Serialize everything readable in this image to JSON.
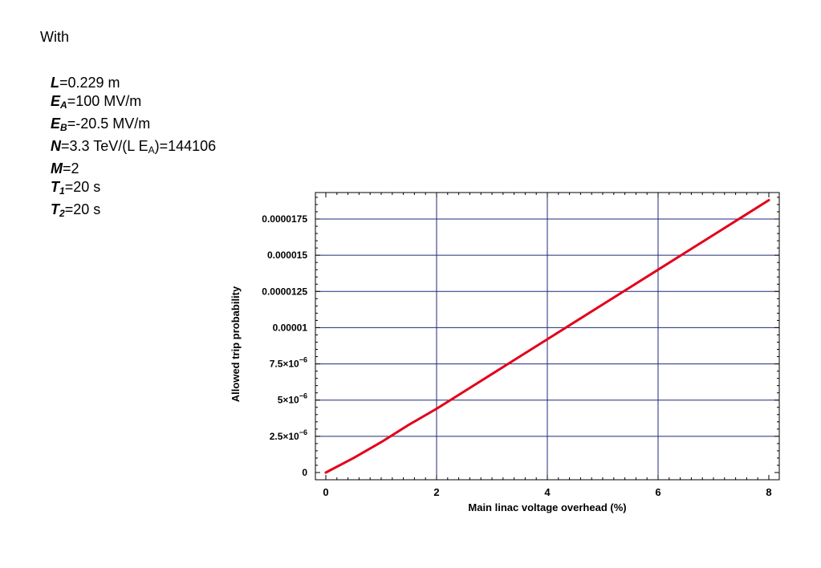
{
  "intro_label": "With",
  "params": [
    {
      "symbol": "L",
      "sub": "",
      "value": "=0.229 m"
    },
    {
      "symbol": "E",
      "sub": "A",
      "value": "=100 MV/m"
    },
    {
      "symbol": "E",
      "sub": "B",
      "value": "=-20.5 MV/m"
    },
    {
      "symbol": "N",
      "sub": "",
      "value": "=3.3 TeV/(L E",
      "value_sub": "A",
      "value_tail": ")=144106"
    },
    {
      "symbol": "M",
      "sub": "",
      "value": "=2"
    },
    {
      "symbol": "T",
      "sub": "1",
      "value": "=20 s"
    },
    {
      "symbol": "T",
      "sub": "2",
      "value": "=20 s"
    }
  ],
  "chart_data": {
    "type": "line",
    "title": "",
    "xlabel": "Main linac voltage overhead (%)",
    "ylabel": "Allowed trip probability",
    "xlim": [
      0,
      8
    ],
    "ylim": [
      0,
      1.95e-05
    ],
    "x_ticks": [
      0,
      2,
      4,
      6,
      8
    ],
    "y_ticks": [
      {
        "value": 0,
        "label": "0"
      },
      {
        "value": 2.5e-06,
        "label": "2.5×10",
        "exp": "−6"
      },
      {
        "value": 5e-06,
        "label": "5×10",
        "exp": "−6"
      },
      {
        "value": 7.5e-06,
        "label": "7.5×10",
        "exp": "−6"
      },
      {
        "value": 1e-05,
        "label": "0.00001"
      },
      {
        "value": 1.25e-05,
        "label": "0.0000125"
      },
      {
        "value": 1.5e-05,
        "label": "0.000015"
      },
      {
        "value": 1.75e-05,
        "label": "0.0000175"
      }
    ],
    "grid": true,
    "series": [
      {
        "color": "#e3001b",
        "x": [
          0,
          0.5,
          1,
          1.5,
          2,
          2.5,
          3,
          3.5,
          4,
          4.5,
          5,
          5.5,
          6,
          6.5,
          7,
          7.5,
          8
        ],
        "y": [
          0,
          1e-06,
          2.1e-06,
          3.3e-06,
          4.4e-06,
          5.6e-06,
          6.8e-06,
          8e-06,
          9.2e-06,
          1.04e-05,
          1.16e-05,
          1.28e-05,
          1.4e-05,
          1.52e-05,
          1.64e-05,
          1.76e-05,
          1.88e-05
        ]
      }
    ]
  }
}
